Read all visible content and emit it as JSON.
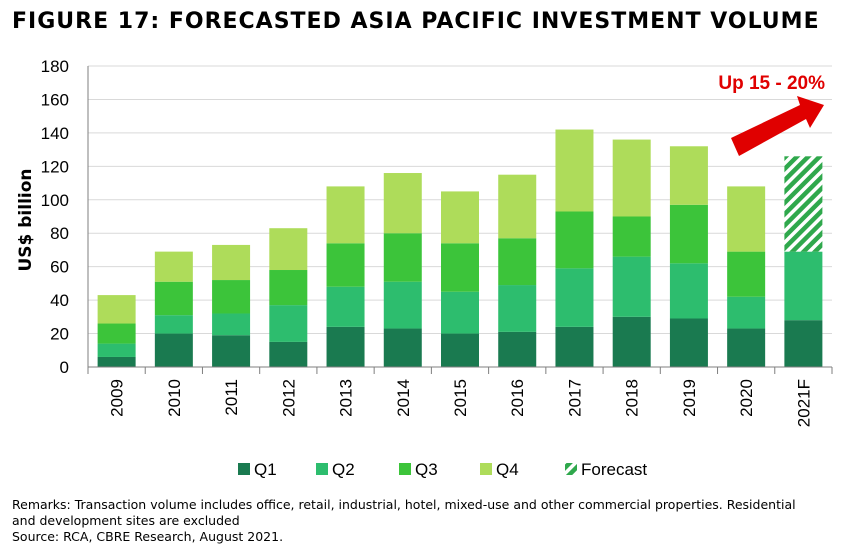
{
  "figure": {
    "title": "FIGURE 17: FORECASTED ASIA PACIFIC INVESTMENT VOLUME",
    "remarks_line1": "Remarks: Transaction volume includes office, retail, industrial, hotel, mixed-use and other commercial properties. Residential",
    "remarks_line2": "and development sites are excluded",
    "source": "Source: RCA, CBRE Research, August 2021."
  },
  "colors": {
    "q1": "#1a7a50",
    "q2": "#2dbd6e",
    "q3": "#3cc43a",
    "q4": "#aedc5a",
    "forecast": "#2fa84c",
    "grid": "#d9d9d9",
    "axis": "#7f7f7f",
    "annotation": "#e00000"
  },
  "chart_data": {
    "type": "bar",
    "stacked": true,
    "ylabel": "US$ billion",
    "xlabel": "",
    "ylim": [
      0,
      180
    ],
    "yticks": [
      0,
      20,
      40,
      60,
      80,
      100,
      120,
      140,
      160,
      180
    ],
    "grid": true,
    "legend_position": "bottom",
    "categories": [
      "2009",
      "2010",
      "2011",
      "2012",
      "2013",
      "2014",
      "2015",
      "2016",
      "2017",
      "2018",
      "2019",
      "2020",
      "2021F"
    ],
    "series": [
      {
        "name": "Q1",
        "color_key": "q1",
        "values": [
          6,
          20,
          19,
          15,
          24,
          23,
          20,
          21,
          24,
          30,
          29,
          23,
          28
        ]
      },
      {
        "name": "Q2",
        "color_key": "q2",
        "values": [
          8,
          11,
          13,
          22,
          24,
          28,
          25,
          28,
          35,
          36,
          33,
          19,
          41
        ]
      },
      {
        "name": "Q3",
        "color_key": "q3",
        "values": [
          12,
          20,
          20,
          21,
          26,
          29,
          29,
          28,
          34,
          24,
          35,
          27,
          null
        ]
      },
      {
        "name": "Q4",
        "color_key": "q4",
        "values": [
          17,
          18,
          21,
          25,
          34,
          36,
          31,
          38,
          49,
          46,
          35,
          39,
          null
        ]
      },
      {
        "name": "Forecast",
        "color_key": "forecast",
        "pattern": "hatched",
        "values": [
          null,
          null,
          null,
          null,
          null,
          null,
          null,
          null,
          null,
          null,
          null,
          null,
          57
        ]
      }
    ],
    "annotations": [
      {
        "text": "Up 15 - 20%",
        "arrow": "up-right",
        "position": "top-right"
      }
    ]
  }
}
